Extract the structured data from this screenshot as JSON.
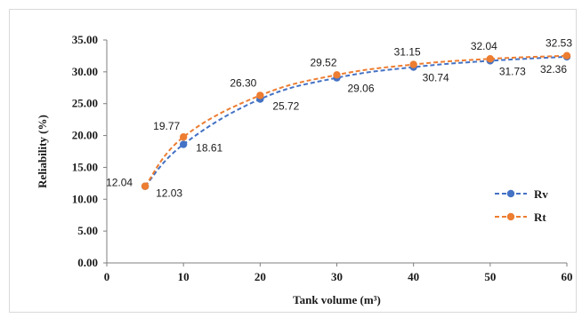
{
  "chart_data": {
    "type": "line",
    "xlabel": "Tank volume (m³)",
    "ylabel": "Reliability  (%)",
    "x": [
      5,
      10,
      20,
      30,
      40,
      50,
      60
    ],
    "xlim": [
      0,
      60
    ],
    "ylim": [
      0,
      35
    ],
    "x_ticks": [
      "0",
      "10",
      "20",
      "30",
      "40",
      "50",
      "60"
    ],
    "y_ticks": [
      "0.00",
      "5.00",
      "10.00",
      "15.00",
      "20.00",
      "25.00",
      "30.00",
      "35.00"
    ],
    "grid": false,
    "legend_position": "right",
    "series": [
      {
        "name": "Rv",
        "color": "#4472C4",
        "values": [
          12.03,
          18.61,
          25.72,
          29.06,
          30.74,
          31.73,
          32.36
        ],
        "labels": [
          "12.03",
          "18.61",
          "25.72",
          "29.06",
          "30.74",
          "31.73",
          "32.36"
        ]
      },
      {
        "name": "Rt",
        "color": "#ED7D31",
        "values": [
          12.04,
          19.77,
          26.3,
          29.52,
          31.15,
          32.04,
          32.53
        ],
        "labels": [
          "12.04",
          "19.77",
          "26.30",
          "29.52",
          "31.15",
          "32.04",
          "32.53"
        ]
      }
    ]
  }
}
